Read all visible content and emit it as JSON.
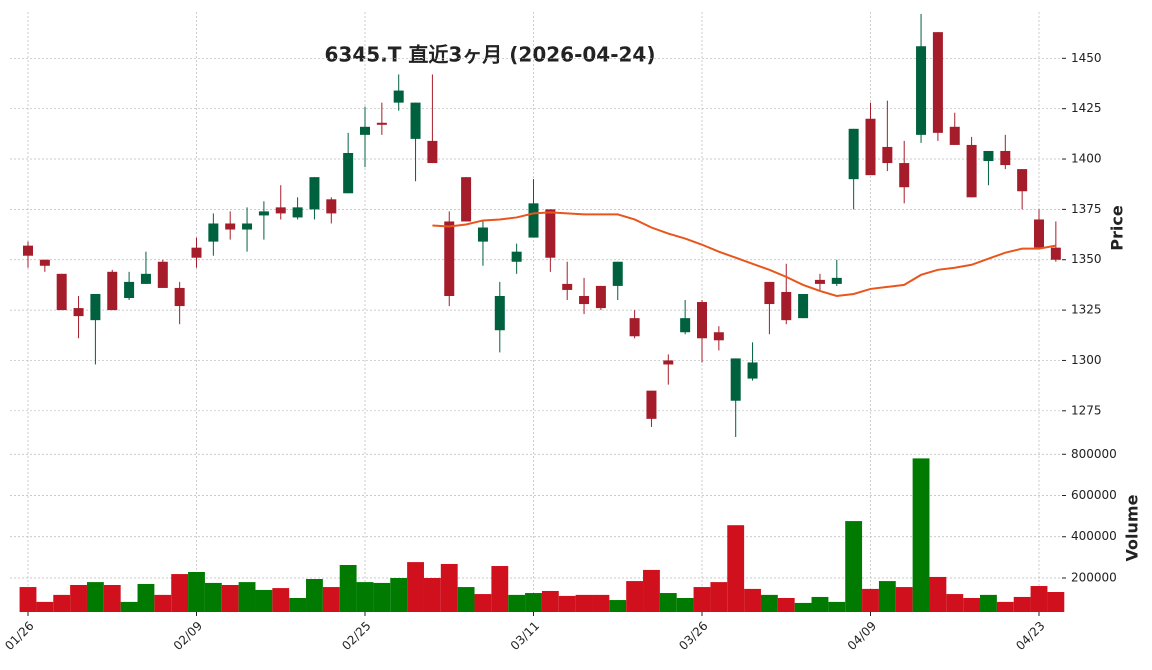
{
  "chart_data": {
    "type": "candlestick",
    "title": "6345.T 直近3ヶ月 (2026-04-24)",
    "ylabel": "Price",
    "categories": [
      "01/26",
      null,
      null,
      null,
      null,
      null,
      null,
      null,
      null,
      null,
      "02/09",
      null,
      null,
      null,
      null,
      null,
      null,
      null,
      null,
      null,
      "02/25",
      null,
      null,
      null,
      null,
      null,
      null,
      null,
      null,
      null,
      "03/11",
      null,
      null,
      null,
      null,
      null,
      null,
      null,
      null,
      null,
      "03/26",
      null,
      null,
      null,
      null,
      null,
      null,
      null,
      null,
      null,
      "04/09",
      null,
      null,
      null,
      null,
      null,
      null,
      null,
      null,
      null,
      "04/23",
      null
    ],
    "open": [
      1357,
      1350,
      1343,
      1326,
      1320,
      1344,
      1331,
      1338,
      1349,
      1336,
      1356,
      1359,
      1368,
      1365,
      1372,
      1376,
      1371,
      1375,
      1380,
      1383,
      1412,
      1418,
      1428,
      1410,
      1409,
      1369,
      1391,
      1359,
      1315,
      1349,
      1361,
      1375,
      1338,
      1332,
      1337,
      1337,
      1321,
      1285,
      1300,
      1314,
      1329,
      1314,
      1280,
      1291,
      1339,
      1334,
      1321,
      1340,
      1338,
      1390,
      1420,
      1406,
      1398,
      1412,
      1463,
      1416,
      1407,
      1399,
      1404,
      1395,
      1370,
      1356
    ],
    "high": [
      1359,
      1350,
      1343,
      1332,
      1333,
      1345,
      1344,
      1354,
      1350,
      1339,
      1361,
      1373,
      1374,
      1376,
      1379,
      1387,
      1381,
      1391,
      1381,
      1413,
      1426,
      1428,
      1442,
      1428,
      1442,
      1374,
      1391,
      1369,
      1339,
      1358,
      1390,
      1375,
      1349,
      1341,
      1337,
      1349,
      1325,
      1285,
      1303,
      1330,
      1330,
      1317,
      1301,
      1309,
      1339,
      1348,
      1333,
      1343,
      1350,
      1415,
      1428,
      1429,
      1409,
      1472,
      1463,
      1423,
      1411,
      1404,
      1412,
      1395,
      1375,
      1369
    ],
    "low": [
      1346,
      1344,
      1325,
      1311,
      1298,
      1325,
      1330,
      1338,
      1336,
      1318,
      1346,
      1352,
      1360,
      1354,
      1360,
      1370,
      1370,
      1370,
      1368,
      1383,
      1396,
      1412,
      1424,
      1389,
      1398,
      1327,
      1369,
      1347,
      1304,
      1343,
      1361,
      1344,
      1330,
      1323,
      1325,
      1330,
      1311,
      1267,
      1288,
      1313,
      1299,
      1305,
      1262,
      1290,
      1313,
      1318,
      1321,
      1335,
      1337,
      1375,
      1392,
      1394,
      1378,
      1408,
      1409,
      1407,
      1381,
      1387,
      1395,
      1375,
      1356,
      1349
    ],
    "close": [
      1352,
      1347,
      1325,
      1322,
      1333,
      1325,
      1339,
      1343,
      1336,
      1327,
      1351,
      1368,
      1365,
      1368,
      1374,
      1373,
      1376,
      1391,
      1373,
      1403,
      1416,
      1417,
      1434,
      1428,
      1398,
      1332,
      1369,
      1366,
      1332,
      1354,
      1378,
      1351,
      1335,
      1328,
      1326,
      1349,
      1312,
      1271,
      1298,
      1321,
      1311,
      1310,
      1301,
      1299,
      1328,
      1320,
      1333,
      1338,
      1341,
      1415,
      1392,
      1398,
      1386,
      1456,
      1413,
      1407,
      1381,
      1404,
      1397,
      1384,
      1356,
      1350
    ],
    "up_color": "#00613e",
    "down_color": "#a51d2a",
    "ma": {
      "color": "#e8561c",
      "values": [
        null,
        null,
        null,
        null,
        null,
        null,
        null,
        null,
        null,
        null,
        null,
        null,
        null,
        null,
        null,
        null,
        null,
        null,
        null,
        null,
        null,
        null,
        null,
        null,
        1367,
        1366.5,
        1367.5,
        1369.5,
        1370,
        1371,
        1373,
        1373.5,
        1373,
        1372.5,
        1372.5,
        1372.5,
        1370,
        1366,
        1363,
        1360.5,
        1357.5,
        1354,
        1351,
        1348,
        1345,
        1341.5,
        1337.5,
        1334.5,
        1332,
        1333,
        1335.5,
        1336.5,
        1337.5,
        1342.5,
        1345,
        1346,
        1347.5,
        1350.5,
        1353.5,
        1355.5,
        1355.5,
        1357
      ]
    },
    "ylim": [
      1260.5,
      1473
    ],
    "yticks": [
      1275,
      1300,
      1325,
      1350,
      1375,
      1400,
      1425,
      1450
    ],
    "grid": true,
    "volume": {
      "ylabel": "Volume",
      "up_color": "#007a00",
      "down_color": "#d0101c",
      "values": [
        156000,
        84000,
        118000,
        166000,
        180000,
        166000,
        84000,
        171000,
        118000,
        219000,
        229000,
        176000,
        166000,
        180000,
        142000,
        151000,
        103000,
        195000,
        156000,
        263000,
        180000,
        176000,
        200000,
        277000,
        200000,
        268000,
        156000,
        122000,
        258000,
        118000,
        127000,
        137000,
        113000,
        118000,
        118000,
        93000,
        185000,
        239000,
        127000,
        103000,
        156000,
        180000,
        456000,
        147000,
        118000,
        103000,
        79000,
        108000,
        84000,
        476000,
        147000,
        185000,
        156000,
        780000,
        205000,
        122000,
        103000,
        118000,
        84000,
        108000,
        161000,
        132000
      ],
      "ylim": [
        35000,
        845000
      ],
      "yticks": [
        200000,
        400000,
        600000,
        800000
      ]
    }
  }
}
